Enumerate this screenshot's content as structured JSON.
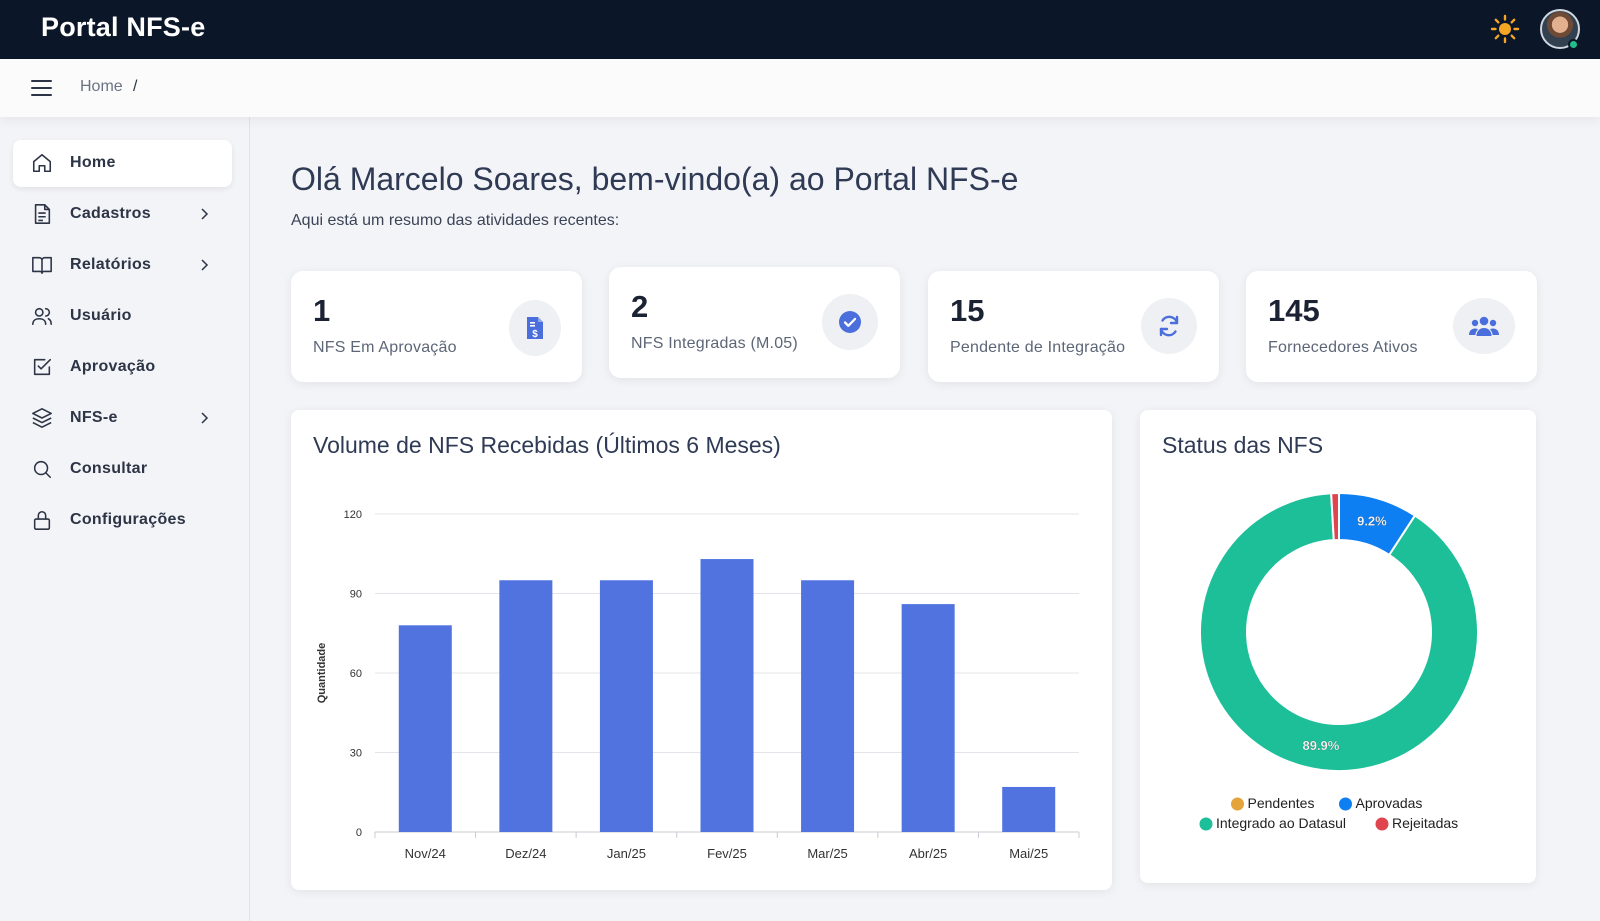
{
  "app": {
    "title": "Portal NFS-e"
  },
  "breadcrumb": {
    "home": "Home",
    "separator": "/"
  },
  "sidebar": {
    "items": [
      {
        "label": "Home",
        "icon": "home-icon",
        "active": true,
        "submenu": false
      },
      {
        "label": "Cadastros",
        "icon": "document-icon",
        "active": false,
        "submenu": true
      },
      {
        "label": "Relatórios",
        "icon": "book-icon",
        "active": false,
        "submenu": true
      },
      {
        "label": "Usuário",
        "icon": "users-icon",
        "active": false,
        "submenu": false
      },
      {
        "label": "Aprovação",
        "icon": "checkbox-icon",
        "active": false,
        "submenu": false
      },
      {
        "label": "NFS-e",
        "icon": "layers-icon",
        "active": false,
        "submenu": true
      },
      {
        "label": "Consultar",
        "icon": "search-icon",
        "active": false,
        "submenu": false
      },
      {
        "label": "Configurações",
        "icon": "lock-icon",
        "active": false,
        "submenu": false
      }
    ]
  },
  "main": {
    "greeting": "Olá Marcelo Soares, bem-vindo(a) ao Portal NFS-e",
    "subtitle": "Aqui está um resumo das atividades recentes:",
    "stats": [
      {
        "value": "1",
        "label": "NFS Em Aprovação",
        "icon": "invoice-dollar-icon",
        "color": "#4a6fdc"
      },
      {
        "value": "2",
        "label": "NFS Integradas (M.05)",
        "icon": "check-circle-icon",
        "color": "#4a6fdc"
      },
      {
        "value": "15",
        "label": "Pendente de Integração",
        "icon": "sync-icon",
        "color": "#4a6fdc"
      },
      {
        "value": "145",
        "label": "Fornecedores Ativos",
        "icon": "users-group-icon",
        "color": "#4a6fdc"
      }
    ]
  },
  "bar_panel": {
    "title": "Volume de NFS Recebidas (Últimos 6 Meses)"
  },
  "pie_panel": {
    "title": "Status das NFS"
  },
  "chart_data": [
    {
      "type": "bar",
      "title": "Volume de NFS Recebidas (Últimos 6 Meses)",
      "xlabel": "",
      "ylabel": "Quantidade",
      "categories": [
        "Nov/24",
        "Dez/24",
        "Jan/25",
        "Fev/25",
        "Mar/25",
        "Abr/25",
        "Mai/25"
      ],
      "values": [
        78,
        95,
        95,
        103,
        95,
        86,
        17
      ],
      "ylim": [
        0,
        120
      ],
      "yticks": [
        0,
        30,
        60,
        90,
        120
      ],
      "grid": true,
      "color": "#5073e0"
    },
    {
      "type": "pie",
      "variant": "doughnut",
      "title": "Status das NFS",
      "legend_position": "bottom",
      "slices": [
        {
          "name": "Pendentes",
          "value": 0,
          "label": "",
          "color": "#e5a43b"
        },
        {
          "name": "Aprovadas",
          "value": 9.2,
          "label": "9.2%",
          "color": "#0d7ff2"
        },
        {
          "name": "Integrado ao Datasul",
          "value": 89.9,
          "label": "89.9%",
          "color": "#1dbf98"
        },
        {
          "name": "Rejeitadas",
          "value": 0.9,
          "label": "",
          "color": "#e0454f"
        }
      ]
    }
  ]
}
